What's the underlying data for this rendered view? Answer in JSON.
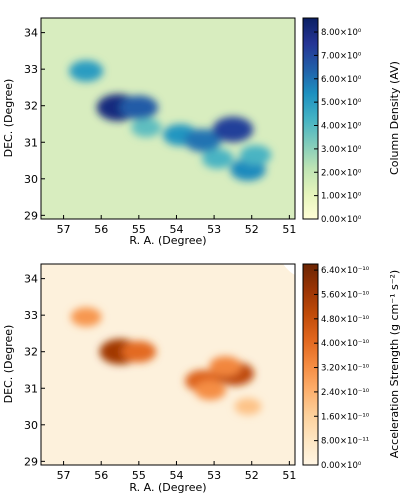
{
  "chart_data": [
    {
      "type": "heatmap",
      "xlabel": "R. A. (Degree)",
      "ylabel": "DEC. (Degree)",
      "x_ticks": [
        "57",
        "56",
        "55",
        "54",
        "53",
        "52",
        "51"
      ],
      "y_ticks": [
        "29",
        "30",
        "31",
        "32",
        "33",
        "34"
      ],
      "xlim": [
        57.6,
        50.85
      ],
      "ylim": [
        28.9,
        34.4
      ],
      "colorbar": {
        "label": "Column Density (AV)",
        "ticks": [
          "0.00×10⁰",
          "1.00×10⁰",
          "2.00×10⁰",
          "3.00×10⁰",
          "4.00×10⁰",
          "5.00×10⁰",
          "6.00×10⁰",
          "7.00×10⁰",
          "8.00×10⁰"
        ],
        "range": [
          0,
          8.6
        ],
        "colors": [
          "#fffed6",
          "#e5f4bb",
          "#bfe4b4",
          "#80cbbb",
          "#43b2c4",
          "#1d90c0",
          "#225ea8",
          "#253494",
          "#0a1f63"
        ]
      },
      "features": [
        {
          "ra": 56.4,
          "dec": 32.95,
          "value": 5.0
        },
        {
          "ra": 55.55,
          "dec": 31.95,
          "value": 8.0
        },
        {
          "ra": 55.0,
          "dec": 31.95,
          "value": 6.5
        },
        {
          "ra": 54.8,
          "dec": 31.4,
          "value": 3.8
        },
        {
          "ra": 53.9,
          "dec": 31.2,
          "value": 5.2
        },
        {
          "ra": 53.3,
          "dec": 31.05,
          "value": 6.0
        },
        {
          "ra": 52.5,
          "dec": 31.35,
          "value": 7.2
        },
        {
          "ra": 52.9,
          "dec": 30.55,
          "value": 4.2
        },
        {
          "ra": 52.1,
          "dec": 30.25,
          "value": 5.5
        },
        {
          "ra": 51.9,
          "dec": 30.65,
          "value": 4.2
        }
      ]
    },
    {
      "type": "heatmap",
      "xlabel": "R. A. (Degree)",
      "ylabel": "DEC. (Degree)",
      "x_ticks": [
        "57",
        "56",
        "55",
        "54",
        "53",
        "52",
        "51"
      ],
      "y_ticks": [
        "29",
        "30",
        "31",
        "32",
        "33",
        "34"
      ],
      "xlim": [
        57.6,
        50.85
      ],
      "ylim": [
        28.9,
        34.4
      ],
      "colorbar": {
        "label": "Acceleration Strength (g  cm⁻¹  s⁻²)",
        "ticks": [
          "0.00×10⁰",
          "8.00×10⁻¹¹",
          "1.60×10⁻¹⁰",
          "2.40×10⁻¹⁰",
          "3.20×10⁻¹⁰",
          "4.00×10⁻¹⁰",
          "4.80×10⁻¹⁰",
          "5.60×10⁻¹⁰",
          "6.40×10⁻¹⁰"
        ],
        "range": [
          0,
          6.6e-10
        ],
        "colors": [
          "#fff5e3",
          "#fee6c2",
          "#fdd09b",
          "#fdae6b",
          "#f48a40",
          "#e0661e",
          "#c04b09",
          "#993405",
          "#6b2503"
        ]
      },
      "features": [
        {
          "ra": 56.4,
          "dec": 32.95,
          "value": 3e-10
        },
        {
          "ra": 55.5,
          "dec": 32.0,
          "value": 5.6e-10
        },
        {
          "ra": 55.0,
          "dec": 32.0,
          "value": 4e-10
        },
        {
          "ra": 53.3,
          "dec": 31.2,
          "value": 4.2e-10
        },
        {
          "ra": 53.1,
          "dec": 30.95,
          "value": 3.2e-10
        },
        {
          "ra": 52.45,
          "dec": 31.4,
          "value": 5e-10
        },
        {
          "ra": 52.7,
          "dec": 31.6,
          "value": 3.4e-10
        },
        {
          "ra": 52.1,
          "dec": 30.5,
          "value": 2e-10
        }
      ]
    }
  ]
}
